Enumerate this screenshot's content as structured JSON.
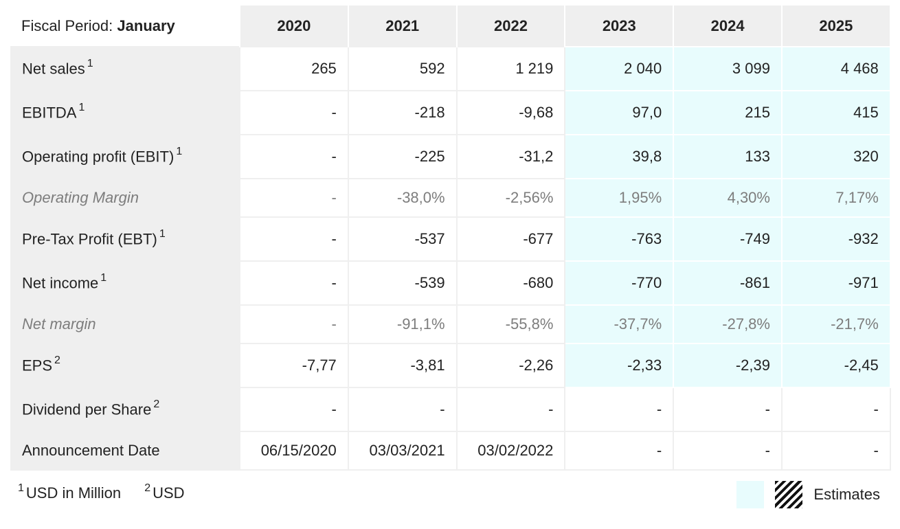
{
  "header": {
    "period_label": "Fiscal Period:",
    "period_value": "January",
    "years": [
      "2020",
      "2021",
      "2022",
      "2023",
      "2024",
      "2025"
    ]
  },
  "rows": [
    {
      "label": "Net sales",
      "note": "1",
      "values": [
        "265",
        "592",
        "1 219",
        "2 040",
        "3 099",
        "4 468"
      ]
    },
    {
      "label": "EBITDA",
      "note": "1",
      "values": [
        "-",
        "-218",
        "-9,68",
        "97,0",
        "215",
        "415"
      ]
    },
    {
      "label": "Operating profit (EBIT)",
      "note": "1",
      "values": [
        "-",
        "-225",
        "-31,2",
        "39,8",
        "133",
        "320"
      ]
    },
    {
      "label": "Operating Margin",
      "note": "",
      "values": [
        "-",
        "-38,0%",
        "-2,56%",
        "1,95%",
        "4,30%",
        "7,17%"
      ]
    },
    {
      "label": "Pre-Tax Profit (EBT)",
      "note": "1",
      "values": [
        "-",
        "-537",
        "-677",
        "-763",
        "-749",
        "-932"
      ]
    },
    {
      "label": "Net income",
      "note": "1",
      "values": [
        "-",
        "-539",
        "-680",
        "-770",
        "-861",
        "-971"
      ]
    },
    {
      "label": "Net margin",
      "note": "",
      "values": [
        "-",
        "-91,1%",
        "-55,8%",
        "-37,7%",
        "-27,8%",
        "-21,7%"
      ]
    },
    {
      "label": "EPS",
      "note": "2",
      "values": [
        "-7,77",
        "-3,81",
        "-2,26",
        "-2,33",
        "-2,39",
        "-2,45"
      ]
    },
    {
      "label": "Dividend per Share",
      "note": "2",
      "values": [
        "-",
        "-",
        "-",
        "-",
        "-",
        "-"
      ]
    },
    {
      "label": "Announcement Date",
      "note": "",
      "values": [
        "06/15/2020",
        "03/03/2021",
        "03/02/2022",
        "-",
        "-",
        "-"
      ]
    }
  ],
  "footnotes": [
    {
      "mark": "1",
      "text": "USD in Million"
    },
    {
      "mark": "2",
      "text": "USD"
    }
  ],
  "legend": {
    "label": "Estimates"
  },
  "colors": {
    "estimate_bg": "#e8fcfd",
    "label_bg": "#efefef",
    "muted_text": "#7d7d7d"
  }
}
